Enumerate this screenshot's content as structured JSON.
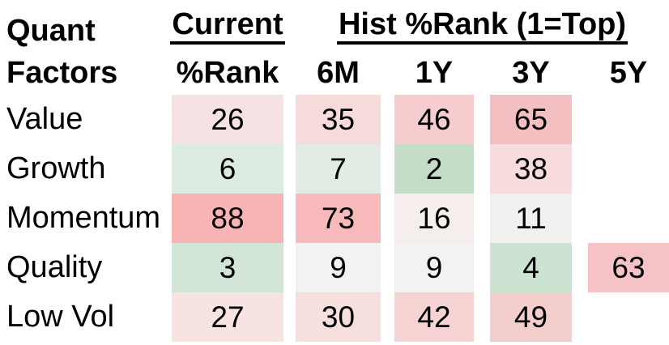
{
  "chart_data": {
    "type": "heatmap",
    "title": "Quant Factors",
    "column_groups": [
      {
        "label": "Current",
        "columns": [
          "%Rank"
        ]
      },
      {
        "label": "Hist %Rank (1=Top)",
        "columns": [
          "6M",
          "1Y",
          "3Y",
          "5Y"
        ]
      }
    ],
    "columns": [
      "Current %Rank",
      "6M",
      "1Y",
      "3Y",
      "5Y"
    ],
    "rows": [
      "Value",
      "Growth",
      "Momentum",
      "Quality",
      "Low Vol"
    ],
    "values": [
      [
        26,
        35,
        46,
        65,
        null
      ],
      [
        6,
        7,
        2,
        38,
        null
      ],
      [
        88,
        73,
        16,
        11,
        null
      ],
      [
        3,
        9,
        9,
        4,
        63
      ],
      [
        27,
        30,
        42,
        49,
        null
      ]
    ],
    "scale": "percentile rank, 1 = top",
    "legend_position": "none",
    "grid": false,
    "color_coding": {
      "low_good": "#c3ddc9",
      "neutral": "#f2f2f2",
      "high_bad": "#f8b4b4"
    }
  },
  "header": {
    "title_line1": "Quant",
    "title_line2": "Factors",
    "current_group_label": "Current",
    "current_sub_label": "%Rank",
    "hist_group_label": "Hist %Rank (1=Top)",
    "col_6m": "6M",
    "col_1y": "1Y",
    "col_3y": "3Y",
    "col_5y": "5Y"
  },
  "rows": [
    {
      "label": "Value",
      "cells": {
        "current": {
          "value": "26",
          "style": "background:#f7e2e3"
        },
        "m6": {
          "value": "35",
          "style": "background:#f6dbda"
        },
        "y1": {
          "value": "46",
          "style": "background:#f5cdcf"
        },
        "y3": {
          "value": "65",
          "style": "background:#f4bfc1"
        }
      }
    },
    {
      "label": "Growth",
      "cells": {
        "current": {
          "value": "6",
          "style": "background:#dcebe0"
        },
        "m6": {
          "value": "7",
          "style": "background:#e1ede4"
        },
        "y1": {
          "value": "2",
          "style": "background:#c3ddc9"
        },
        "y3": {
          "value": "38",
          "style": "background:#f8dcdd"
        }
      }
    },
    {
      "label": "Momentum",
      "cells": {
        "current": {
          "value": "88",
          "style": "background:#f8b4b4"
        },
        "m6": {
          "value": "73",
          "style": "background:#f8b9ba"
        },
        "y1": {
          "value": "16",
          "style": "background:#f5eeed"
        },
        "y3": {
          "value": "11",
          "style": "background:#f1f1f0"
        }
      }
    },
    {
      "label": "Quality",
      "cells": {
        "current": {
          "value": "3",
          "style": "background:#d2e5d6"
        },
        "m6": {
          "value": "9",
          "style": "background:#f2f2f2"
        },
        "y1": {
          "value": "9",
          "style": "background:#f2f2f2"
        },
        "y3": {
          "value": "4",
          "style": "background:#cde3d2"
        },
        "y5": {
          "value": "63",
          "style": "background:#f5c3c6"
        }
      }
    },
    {
      "label": "Low Vol",
      "cells": {
        "current": {
          "value": "27",
          "style": "background:#f6e3e2"
        },
        "m6": {
          "value": "30",
          "style": "background:#f7dfde"
        },
        "y1": {
          "value": "42",
          "style": "background:#f6d4d4"
        },
        "y3": {
          "value": "49",
          "style": "background:#f4cecd"
        }
      }
    }
  ]
}
